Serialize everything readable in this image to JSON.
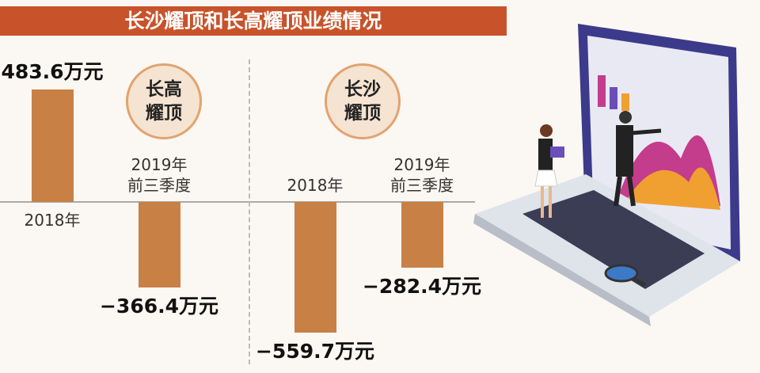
{
  "title": "长沙耀顶和长高耀顶业绩情况",
  "chart_data": [
    {
      "type": "bar",
      "title": "长高耀顶",
      "color": "#c98045",
      "categories": [
        "2018年",
        "2019年前三季度"
      ],
      "values": [
        483.6,
        -366.4
      ],
      "value_labels": [
        "483.6万元",
        "−366.4万元"
      ]
    },
    {
      "type": "bar",
      "title": "长沙耀顶",
      "color": "#c98045",
      "categories": [
        "2018年",
        "2019年前三季度"
      ],
      "values": [
        -559.7,
        -282.4
      ],
      "value_labels": [
        "−559.7万元",
        "−282.4万元"
      ]
    }
  ]
}
